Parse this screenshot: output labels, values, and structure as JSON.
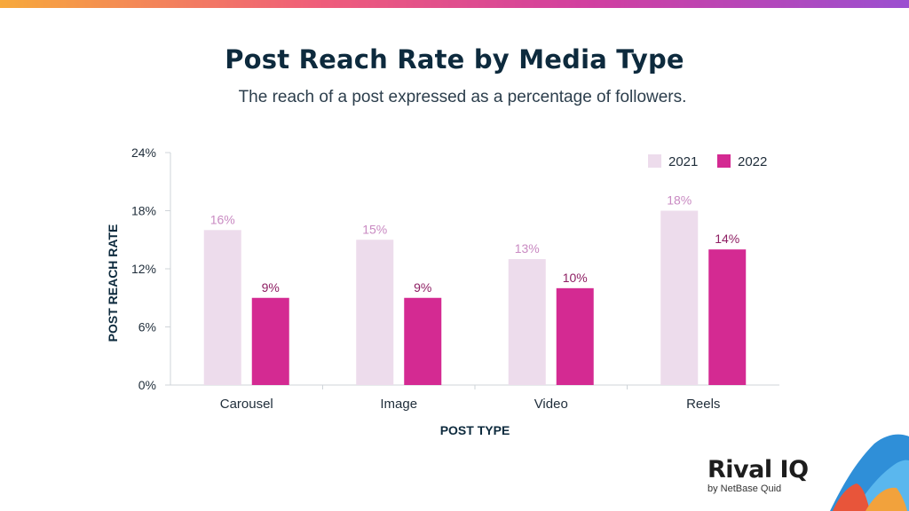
{
  "header": {
    "title": "Post Reach Rate by Media Type",
    "subtitle": "The reach of a post expressed as a percentage of followers."
  },
  "chart_data": {
    "type": "bar",
    "title": "Post Reach Rate by Media Type",
    "subtitle": "The reach of a post expressed as a percentage of followers.",
    "xlabel": "POST TYPE",
    "ylabel": "POST REACH RATE",
    "categories": [
      "Carousel",
      "Image",
      "Video",
      "Reels"
    ],
    "series": [
      {
        "name": "2021",
        "values": [
          16,
          15,
          13,
          18
        ],
        "labels": [
          "16%",
          "15%",
          "13%",
          "18%"
        ],
        "color": "#eddcec",
        "label_color": "#c98ac2"
      },
      {
        "name": "2022",
        "values": [
          9,
          9,
          10,
          14
        ],
        "labels": [
          "9%",
          "9%",
          "10%",
          "14%"
        ],
        "color": "#d42a92",
        "label_color": "#8e1f63"
      }
    ],
    "ylim": [
      0,
      24
    ],
    "yticks": [
      0,
      6,
      12,
      18,
      24
    ],
    "ytick_labels": [
      "0%",
      "6%",
      "12%",
      "18%",
      "24%"
    ],
    "grid": false,
    "legend": "top-right"
  },
  "logo": {
    "name": "Rival IQ",
    "tagline": "by NetBase Quid"
  },
  "colors": {
    "accent": "#d42a92",
    "light": "#eddcec",
    "title": "#0d2a3d"
  }
}
